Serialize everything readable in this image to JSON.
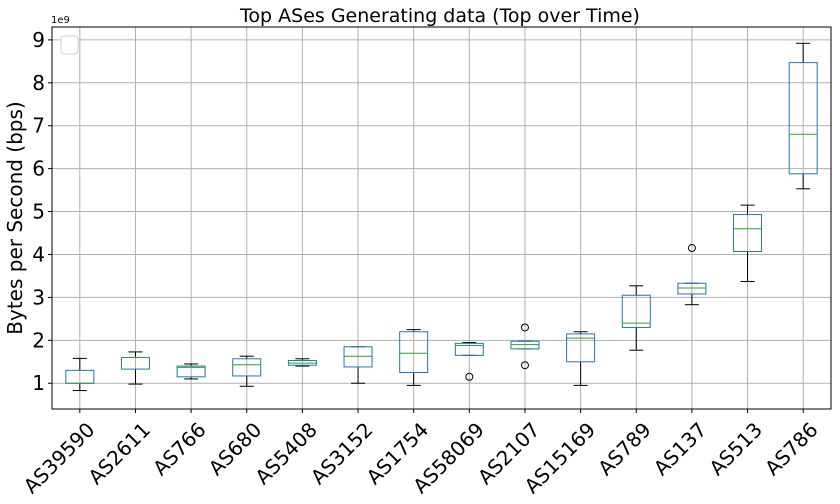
{
  "chart_data": {
    "type": "box",
    "title": "Top ASes Generating data (Top over Time)",
    "xlabel": "",
    "ylabel": "Bytes per Second (bps)",
    "y_offset_label": "1e9",
    "ylim": [
      0.4,
      9.3
    ],
    "yticks": [
      1,
      2,
      3,
      4,
      5,
      6,
      7,
      8,
      9
    ],
    "grid": true,
    "legend": "top-left (empty)",
    "colors": {
      "box": "#1f77b4",
      "median": "#2ca02c",
      "whisker": "#000000",
      "grid": "#b0b0b0"
    },
    "categories": [
      "AS39590",
      "AS2611",
      "AS766",
      "AS680",
      "AS5408",
      "AS3152",
      "AS1754",
      "AS58069",
      "AS2107",
      "AS15169",
      "AS789",
      "AS137",
      "AS513",
      "AS786"
    ],
    "boxes": [
      {
        "label": "AS39590",
        "whislo": 0.83,
        "q1": 1.0,
        "med": 1.0,
        "q3": 1.3,
        "whishi": 1.58,
        "fliers": []
      },
      {
        "label": "AS2611",
        "whislo": 0.98,
        "q1": 1.33,
        "med": 1.6,
        "q3": 1.6,
        "whishi": 1.73,
        "fliers": []
      },
      {
        "label": "AS766",
        "whislo": 1.1,
        "q1": 1.15,
        "med": 1.37,
        "q3": 1.4,
        "whishi": 1.45,
        "fliers": []
      },
      {
        "label": "AS680",
        "whislo": 0.93,
        "q1": 1.17,
        "med": 1.43,
        "q3": 1.57,
        "whishi": 1.63,
        "fliers": []
      },
      {
        "label": "AS5408",
        "whislo": 1.4,
        "q1": 1.42,
        "med": 1.47,
        "q3": 1.53,
        "whishi": 1.57,
        "fliers": []
      },
      {
        "label": "AS3152",
        "whislo": 1.0,
        "q1": 1.38,
        "med": 1.63,
        "q3": 1.85,
        "whishi": 1.85,
        "fliers": []
      },
      {
        "label": "AS1754",
        "whislo": 0.95,
        "q1": 1.25,
        "med": 1.7,
        "q3": 2.2,
        "whishi": 2.25,
        "fliers": []
      },
      {
        "label": "AS58069",
        "whislo": 1.65,
        "q1": 1.65,
        "med": 1.88,
        "q3": 1.93,
        "whishi": 1.95,
        "fliers": [
          1.15
        ]
      },
      {
        "label": "AS2107",
        "whislo": 1.8,
        "q1": 1.8,
        "med": 1.9,
        "q3": 1.98,
        "whishi": 1.98,
        "fliers": [
          1.42,
          2.3
        ]
      },
      {
        "label": "AS15169",
        "whislo": 0.95,
        "q1": 1.5,
        "med": 2.05,
        "q3": 2.15,
        "whishi": 2.2,
        "fliers": []
      },
      {
        "label": "AS789",
        "whislo": 1.77,
        "q1": 2.3,
        "med": 2.4,
        "q3": 3.05,
        "whishi": 3.27,
        "fliers": []
      },
      {
        "label": "AS137",
        "whislo": 2.83,
        "q1": 3.08,
        "med": 3.22,
        "q3": 3.33,
        "whishi": 3.33,
        "fliers": [
          4.15
        ]
      },
      {
        "label": "AS513",
        "whislo": 3.37,
        "q1": 4.07,
        "med": 4.6,
        "q3": 4.93,
        "whishi": 5.15,
        "fliers": []
      },
      {
        "label": "AS786",
        "whislo": 5.53,
        "q1": 5.88,
        "med": 6.8,
        "q3": 8.47,
        "whishi": 8.92,
        "fliers": []
      }
    ]
  }
}
